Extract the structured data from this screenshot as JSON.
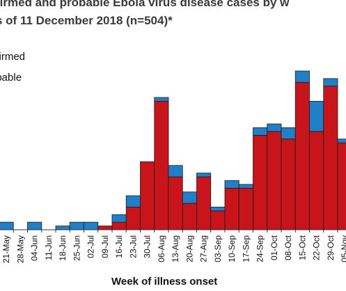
{
  "title": {
    "line1": "firmed and probable Ebola virus disease cases by w",
    "line2": "s of 11 December 2018 (n=504)*"
  },
  "legend": {
    "confirmed": "nfirmed",
    "probable": "obable"
  },
  "colors": {
    "confirmed": "#1f7fc9",
    "probable": "#c8151b",
    "edge": "#1a1a1a"
  },
  "chart_data": {
    "type": "bar",
    "stacked": true,
    "xlabel": "Week of illness onset",
    "categories": [
      "21-May",
      "28-May",
      "04-Jun",
      "11-Jun",
      "18-Jun",
      "25-Jun",
      "02-Jul",
      "09-Jul",
      "16-Jul",
      "23-Jul",
      "30-Jul",
      "06-Aug",
      "13-Aug",
      "20-Aug",
      "27-Aug",
      "03-Sep",
      "10-Sep",
      "17-Sep",
      "24-Sep",
      "01-Oct",
      "08-Oct",
      "15-Oct",
      "22-Oct",
      "29-Oct",
      "05-Nov"
    ],
    "series": [
      {
        "name": "Probable",
        "values": [
          0,
          0,
          0,
          0,
          0,
          0,
          0,
          1,
          2,
          6,
          18,
          34,
          14,
          7,
          14,
          5,
          11,
          11,
          25,
          26,
          24,
          39,
          26,
          38,
          23
        ]
      },
      {
        "name": "Confirmed",
        "values": [
          2,
          0,
          2,
          0,
          1,
          2,
          2,
          0,
          2,
          3,
          0,
          1,
          3,
          3,
          1,
          1,
          2,
          1,
          2,
          2,
          3,
          3,
          8,
          2,
          1
        ]
      }
    ],
    "ylim": [
      0,
      42
    ]
  }
}
